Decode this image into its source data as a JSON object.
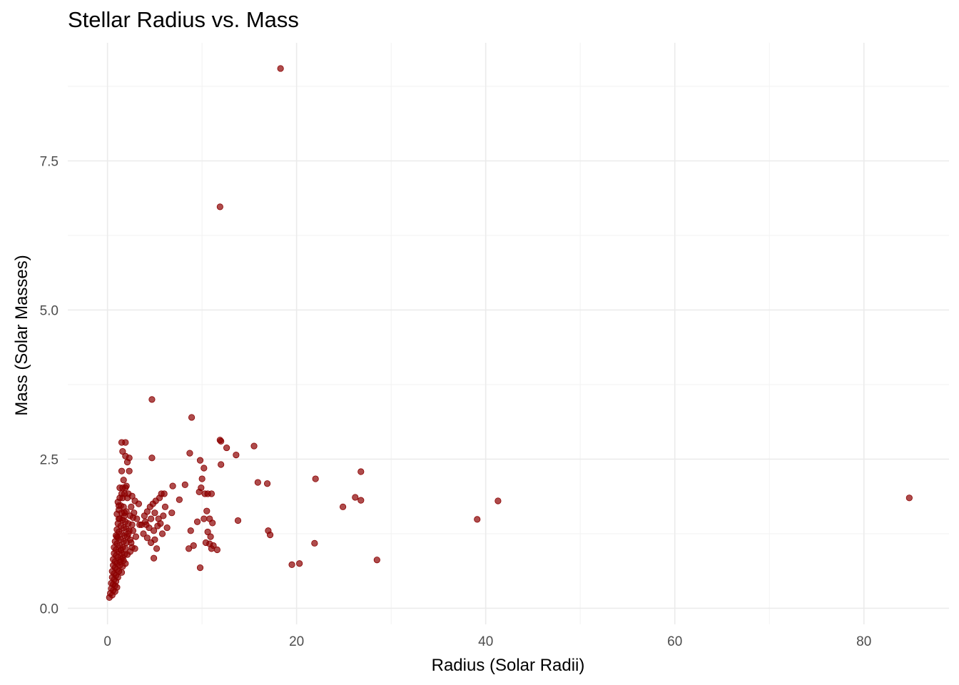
{
  "chart_data": {
    "type": "scatter",
    "title": "Stellar Radius vs. Mass",
    "xlabel": "Radius (Solar Radii)",
    "ylabel": "Mass (Solar Masses)",
    "xlim": [
      -4.2,
      89
    ],
    "ylim": [
      -0.27,
      9.48
    ],
    "x_ticks": [
      0,
      20,
      40,
      60,
      80
    ],
    "x_tick_labels": [
      "0",
      "20",
      "40",
      "60",
      "80"
    ],
    "y_ticks": [
      0.0,
      2.5,
      5.0,
      7.5
    ],
    "y_tick_labels": [
      "0.0",
      "2.5",
      "5.0",
      "7.5"
    ],
    "grid": true,
    "point_color": "#8b0000",
    "series": [
      {
        "points": [
          [
            18.3,
            9.05
          ],
          [
            11.9,
            6.73
          ],
          [
            4.7,
            3.5
          ],
          [
            8.9,
            3.2
          ],
          [
            11.9,
            2.82
          ],
          [
            12.0,
            2.8
          ],
          [
            15.5,
            2.72
          ],
          [
            12.6,
            2.69
          ],
          [
            13.6,
            2.57
          ],
          [
            8.7,
            2.6
          ],
          [
            4.7,
            2.52
          ],
          [
            9.8,
            2.48
          ],
          [
            10.2,
            2.35
          ],
          [
            12.0,
            2.41
          ],
          [
            26.8,
            2.29
          ],
          [
            22.0,
            2.17
          ],
          [
            10.0,
            2.17
          ],
          [
            15.9,
            2.11
          ],
          [
            16.9,
            2.09
          ],
          [
            26.2,
            1.86
          ],
          [
            26.8,
            1.81
          ],
          [
            41.3,
            1.8
          ],
          [
            24.9,
            1.7
          ],
          [
            84.8,
            1.85
          ],
          [
            39.1,
            1.49
          ],
          [
            13.8,
            1.47
          ],
          [
            17.0,
            1.3
          ],
          [
            17.2,
            1.23
          ],
          [
            21.9,
            1.09
          ],
          [
            28.5,
            0.81
          ],
          [
            20.3,
            0.75
          ],
          [
            19.5,
            0.73
          ],
          [
            9.8,
            0.68
          ],
          [
            4.9,
            0.84
          ],
          [
            5.2,
            1.0
          ],
          [
            8.6,
            1.0
          ],
          [
            8.8,
            1.3
          ],
          [
            9.1,
            1.05
          ],
          [
            9.5,
            1.45
          ],
          [
            9.7,
            1.95
          ],
          [
            9.9,
            2.02
          ],
          [
            10.3,
            1.92
          ],
          [
            10.6,
            1.92
          ],
          [
            11.0,
            1.92
          ],
          [
            10.5,
            1.63
          ],
          [
            10.8,
            1.5
          ],
          [
            11.1,
            1.43
          ],
          [
            10.2,
            1.5
          ],
          [
            10.6,
            1.28
          ],
          [
            10.9,
            1.2
          ],
          [
            10.4,
            1.1
          ],
          [
            10.8,
            1.08
          ],
          [
            11.2,
            1.05
          ],
          [
            11.6,
            0.98
          ],
          [
            11.0,
            1.0
          ],
          [
            7.6,
            1.82
          ],
          [
            8.2,
            2.07
          ],
          [
            6.9,
            2.05
          ],
          [
            6.8,
            1.6
          ],
          [
            6.0,
            1.92
          ],
          [
            5.7,
            1.92
          ],
          [
            5.5,
            1.85
          ],
          [
            5.1,
            1.8
          ],
          [
            4.8,
            1.75
          ],
          [
            4.5,
            1.7
          ],
          [
            4.2,
            1.62
          ],
          [
            3.9,
            1.55
          ],
          [
            4.1,
            1.4
          ],
          [
            4.4,
            1.35
          ],
          [
            4.9,
            1.3
          ],
          [
            5.3,
            1.38
          ],
          [
            5.6,
            1.42
          ],
          [
            5.9,
            1.55
          ],
          [
            6.1,
            1.7
          ],
          [
            5.0,
            1.6
          ],
          [
            5.4,
            1.5
          ],
          [
            4.6,
            1.5
          ],
          [
            3.8,
            1.25
          ],
          [
            4.2,
            1.18
          ],
          [
            4.6,
            1.1
          ],
          [
            5.0,
            1.15
          ],
          [
            3.6,
            1.4
          ],
          [
            4.0,
            1.45
          ],
          [
            6.3,
            1.35
          ],
          [
            5.8,
            1.25
          ],
          [
            2.2,
            1.92
          ],
          [
            2.6,
            1.88
          ],
          [
            2.9,
            1.8
          ],
          [
            3.3,
            1.75
          ],
          [
            2.8,
            1.6
          ],
          [
            3.1,
            1.5
          ],
          [
            3.4,
            1.4
          ],
          [
            2.7,
            1.3
          ],
          [
            3.0,
            1.2
          ],
          [
            2.5,
            1.1
          ],
          [
            2.9,
            1.0
          ],
          [
            2.4,
            0.95
          ],
          [
            2.0,
            2.05
          ],
          [
            2.3,
            2.3
          ],
          [
            2.1,
            2.45
          ],
          [
            1.9,
            2.55
          ],
          [
            2.3,
            2.52
          ],
          [
            1.6,
            2.63
          ],
          [
            1.5,
            2.78
          ],
          [
            1.9,
            2.78
          ],
          [
            1.7,
            2.15
          ],
          [
            1.6,
            2.02
          ],
          [
            1.5,
            1.92
          ],
          [
            1.8,
            1.92
          ],
          [
            2.1,
            1.85
          ],
          [
            1.3,
            1.85
          ],
          [
            1.1,
            1.78
          ],
          [
            1.4,
            1.72
          ],
          [
            1.7,
            1.7
          ],
          [
            2.0,
            1.62
          ],
          [
            1.2,
            1.65
          ],
          [
            1.5,
            1.6
          ],
          [
            1.8,
            1.55
          ],
          [
            1.0,
            1.58
          ],
          [
            1.3,
            1.5
          ],
          [
            1.6,
            1.48
          ],
          [
            1.9,
            1.45
          ],
          [
            2.2,
            1.42
          ],
          [
            1.1,
            1.42
          ],
          [
            1.4,
            1.38
          ],
          [
            1.7,
            1.35
          ],
          [
            2.0,
            1.33
          ],
          [
            2.3,
            1.3
          ],
          [
            1.0,
            1.32
          ],
          [
            1.2,
            1.28
          ],
          [
            1.5,
            1.25
          ],
          [
            1.8,
            1.22
          ],
          [
            2.1,
            1.2
          ],
          [
            0.9,
            1.22
          ],
          [
            1.1,
            1.18
          ],
          [
            1.4,
            1.15
          ],
          [
            1.7,
            1.12
          ],
          [
            2.0,
            1.1
          ],
          [
            0.8,
            1.12
          ],
          [
            1.0,
            1.08
          ],
          [
            1.3,
            1.05
          ],
          [
            1.6,
            1.02
          ],
          [
            1.9,
            1.0
          ],
          [
            0.7,
            1.02
          ],
          [
            0.9,
            0.98
          ],
          [
            1.2,
            0.95
          ],
          [
            1.5,
            0.92
          ],
          [
            1.8,
            0.9
          ],
          [
            0.7,
            0.92
          ],
          [
            0.9,
            0.88
          ],
          [
            1.1,
            0.85
          ],
          [
            1.4,
            0.82
          ],
          [
            1.7,
            0.8
          ],
          [
            0.6,
            0.82
          ],
          [
            0.8,
            0.78
          ],
          [
            1.0,
            0.75
          ],
          [
            1.3,
            0.72
          ],
          [
            1.6,
            0.7
          ],
          [
            0.6,
            0.72
          ],
          [
            0.8,
            0.68
          ],
          [
            1.0,
            0.65
          ],
          [
            1.2,
            0.62
          ],
          [
            1.5,
            0.6
          ],
          [
            0.5,
            0.62
          ],
          [
            0.7,
            0.58
          ],
          [
            0.9,
            0.55
          ],
          [
            1.1,
            0.52
          ],
          [
            0.5,
            0.52
          ],
          [
            0.7,
            0.48
          ],
          [
            0.9,
            0.45
          ],
          [
            0.4,
            0.42
          ],
          [
            0.6,
            0.4
          ],
          [
            0.8,
            0.38
          ],
          [
            1.0,
            0.35
          ],
          [
            0.4,
            0.33
          ],
          [
            0.6,
            0.3
          ],
          [
            0.8,
            0.28
          ],
          [
            0.3,
            0.25
          ],
          [
            0.5,
            0.22
          ],
          [
            0.2,
            0.18
          ],
          [
            1.2,
            1.72
          ],
          [
            1.6,
            1.85
          ],
          [
            2.4,
            1.55
          ],
          [
            2.6,
            1.4
          ],
          [
            2.2,
            1.25
          ],
          [
            2.4,
            1.15
          ],
          [
            2.6,
            1.02
          ],
          [
            1.5,
            2.3
          ],
          [
            1.3,
            2.02
          ],
          [
            1.9,
            2.02
          ],
          [
            2.5,
            1.7
          ],
          [
            2.7,
            1.52
          ],
          [
            1.8,
            1.6
          ],
          [
            1.2,
            1.5
          ],
          [
            1.0,
            1.2
          ],
          [
            1.4,
            0.98
          ],
          [
            2.1,
            0.9
          ],
          [
            1.6,
            0.85
          ],
          [
            1.9,
            0.75
          ],
          [
            1.3,
            0.78
          ]
        ]
      }
    ]
  }
}
